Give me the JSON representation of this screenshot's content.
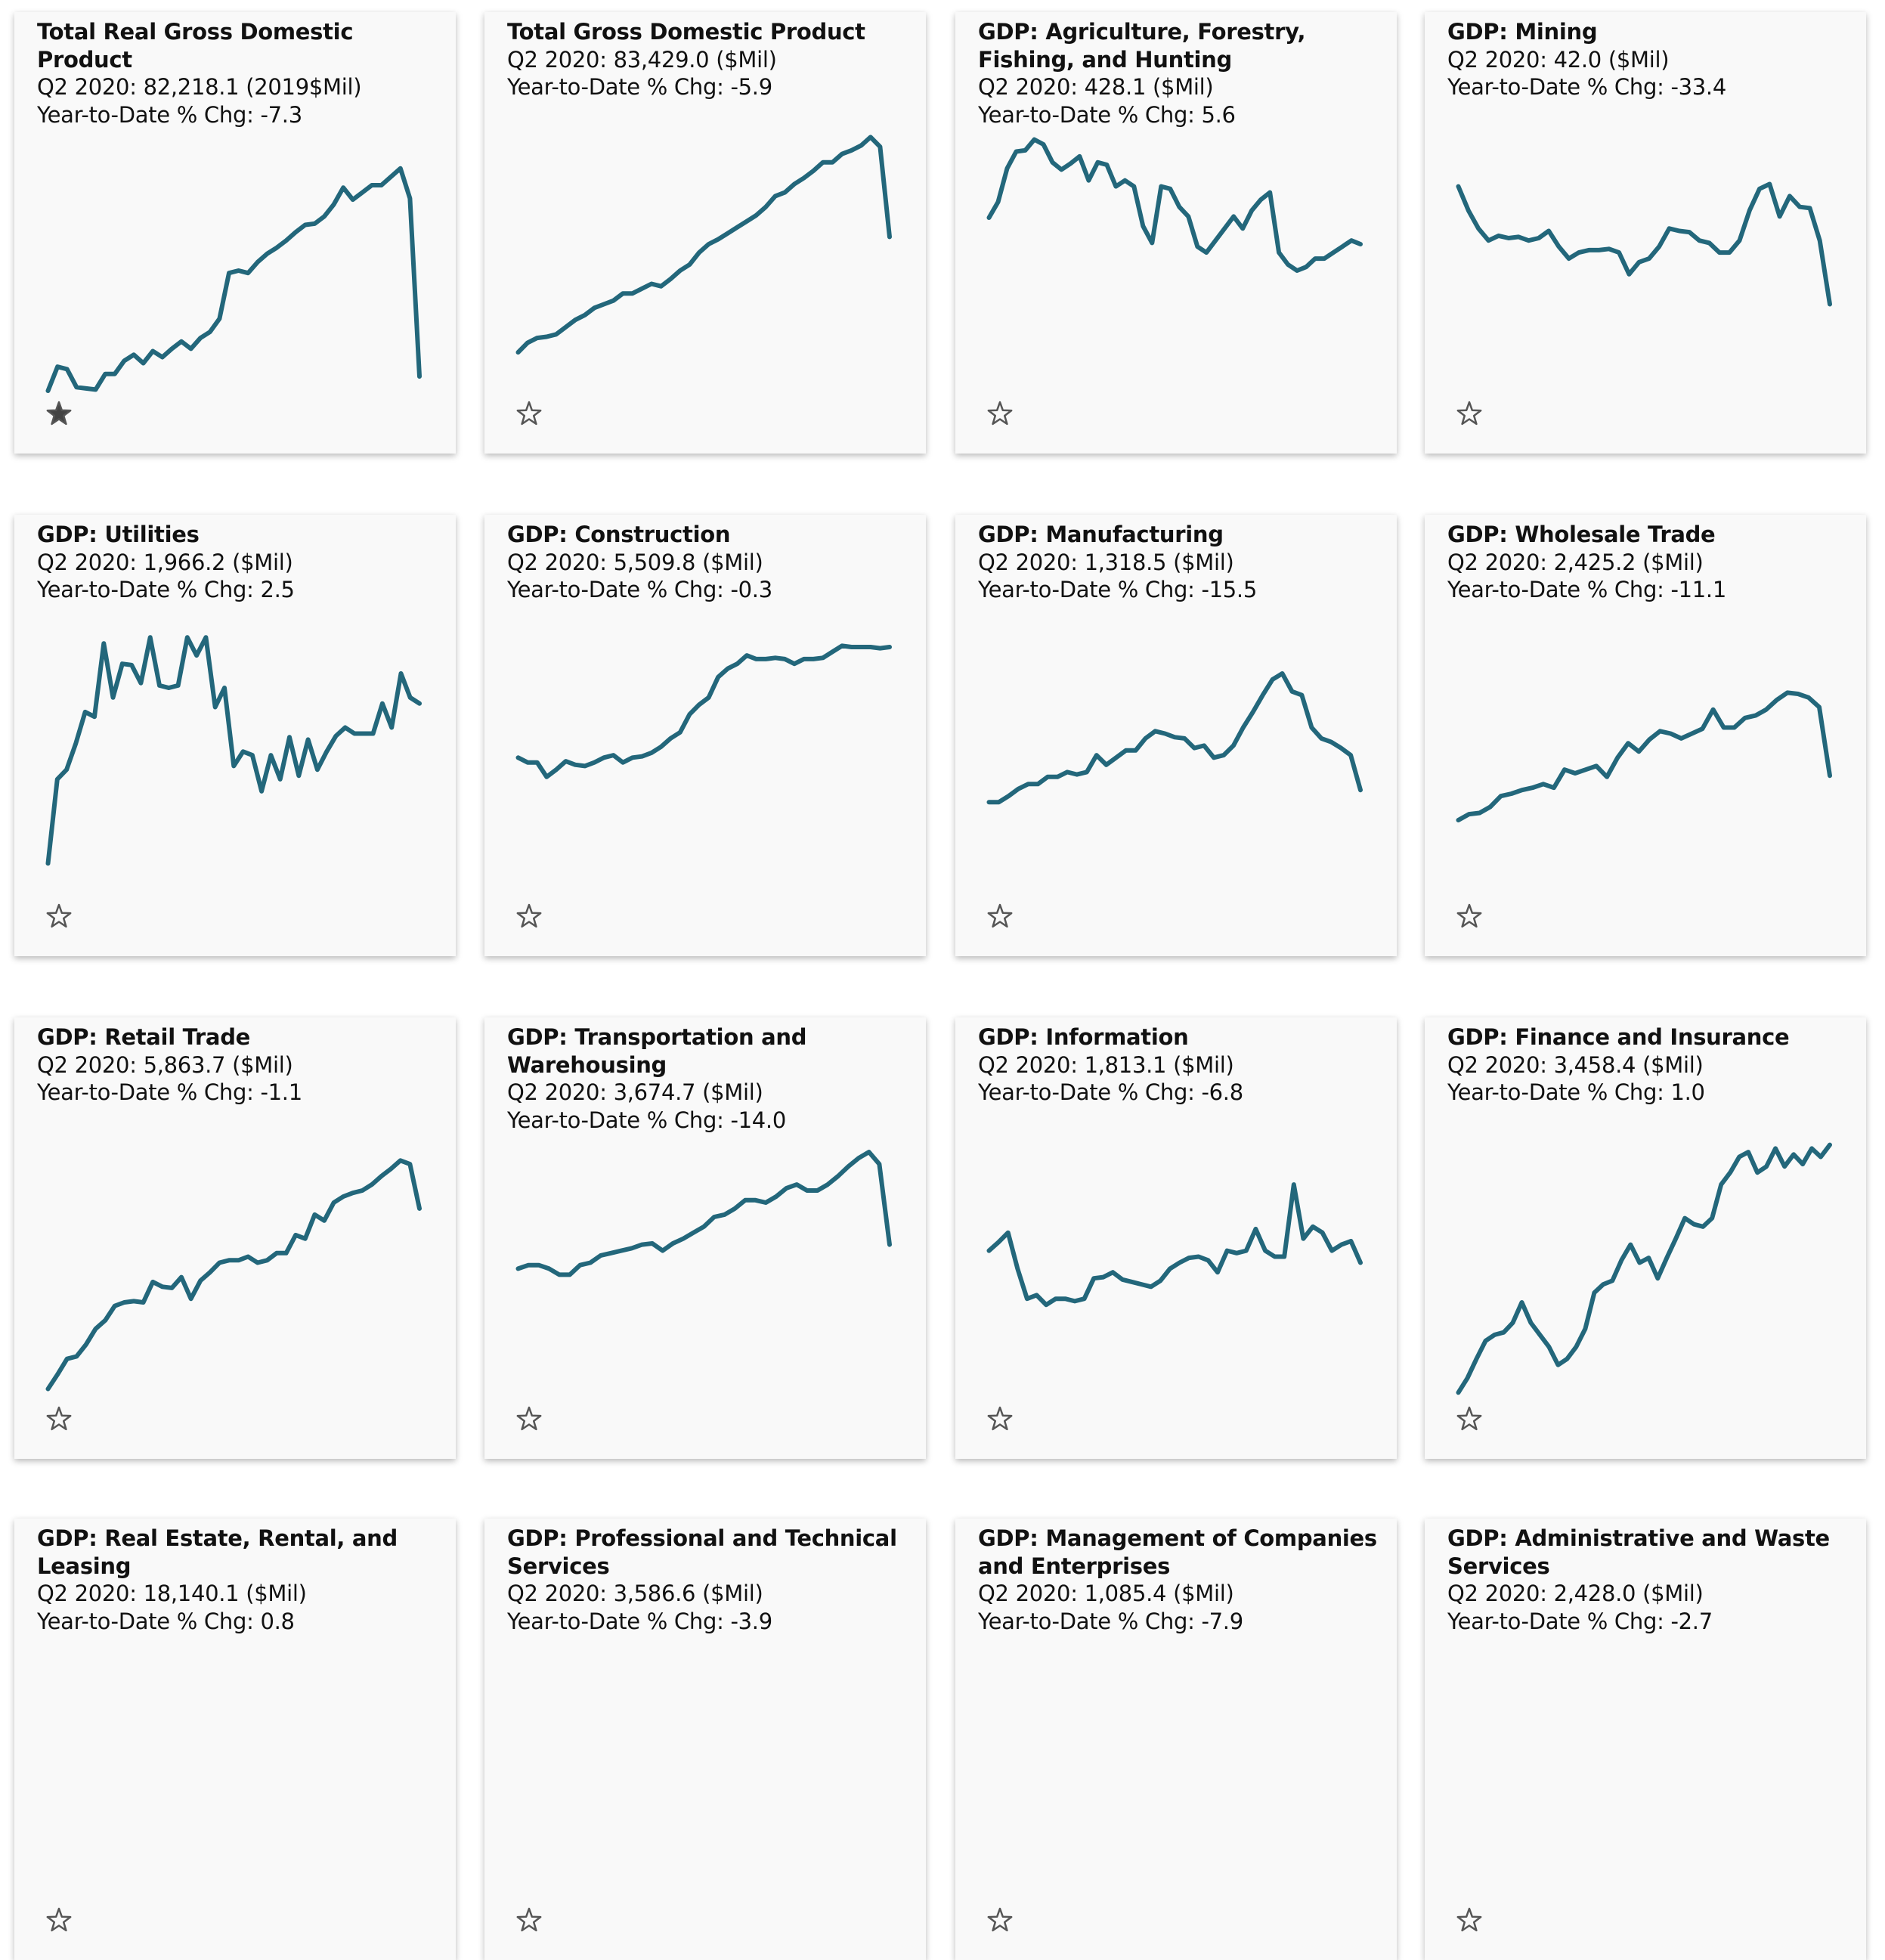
{
  "line_color": "#23677b",
  "cards": [
    {
      "title": "Total Real Gross Domestic Product",
      "value": "Q2 2020: 82,218.1 (2019$Mil)",
      "ytd": "Year-to-Date % Chg: -7.3",
      "starred": true,
      "values": [
        15,
        35,
        33,
        18,
        17,
        16,
        29,
        29,
        40,
        45,
        38,
        48,
        43,
        50,
        56,
        50,
        59,
        64,
        75,
        113,
        115,
        113,
        122,
        129,
        134,
        140,
        147,
        153,
        154,
        160,
        170,
        184,
        174,
        180,
        186,
        186,
        193,
        200,
        175,
        27
      ]
    },
    {
      "title": "Total Gross Domestic Product",
      "value": "Q2 2020: 83,429.0 ($Mil)",
      "ytd": "Year-to-Date % Chg: -5.9",
      "starred": false,
      "values": [
        47,
        55,
        59,
        60,
        62,
        68,
        74,
        78,
        84,
        87,
        90,
        96,
        96,
        100,
        104,
        102,
        108,
        115,
        120,
        130,
        137,
        141,
        146,
        151,
        156,
        161,
        168,
        177,
        180,
        187,
        192,
        198,
        205,
        205,
        212,
        215,
        219,
        226,
        218,
        143
      ]
    },
    {
      "title": "GDP: Agriculture, Forestry, Fishing, and Hunting",
      "value": "Q2 2020: 428.1 ($Mil)",
      "ytd": "Year-to-Date % Chg: 5.6",
      "starred": false,
      "values": [
        159,
        172,
        200,
        214,
        215,
        224,
        220,
        205,
        199,
        204,
        210,
        190,
        205,
        203,
        185,
        190,
        185,
        152,
        138,
        185,
        183,
        168,
        160,
        135,
        130,
        140,
        150,
        160,
        150,
        165,
        174,
        180,
        130,
        120,
        115,
        118,
        125,
        125,
        130,
        135,
        140,
        137
      ]
    },
    {
      "title": "GDP: Mining",
      "value": "Q2 2020: 42.0 ($Mil)",
      "ytd": "Year-to-Date % Chg: -33.4",
      "starred": false,
      "values": [
        185,
        165,
        150,
        140,
        144,
        142,
        143,
        140,
        142,
        148,
        135,
        125,
        130,
        132,
        132,
        133,
        130,
        112,
        122,
        125,
        135,
        150,
        148,
        147,
        140,
        138,
        130,
        130,
        140,
        165,
        183,
        187,
        160,
        177,
        168,
        167,
        140,
        87
      ]
    },
    {
      "title": "GDP: Utilities",
      "value": "Q2 2020: 1,966.2 ($Mil)",
      "ytd": "Year-to-Date % Chg: 2.5",
      "starred": false,
      "values": [
        40,
        110,
        118,
        140,
        166,
        162,
        223,
        178,
        206,
        205,
        190,
        228,
        188,
        186,
        188,
        228,
        213,
        228,
        170,
        186,
        121,
        133,
        130,
        100,
        130,
        110,
        145,
        113,
        143,
        118,
        133,
        146,
        153,
        148,
        148,
        148,
        173,
        153,
        198,
        178,
        173
      ]
    },
    {
      "title": "GDP: Construction",
      "value": "Q2 2020: 5,509.8 ($Mil)",
      "ytd": "Year-to-Date % Chg: -0.3",
      "starred": false,
      "values": [
        128,
        124,
        124,
        112,
        118,
        125,
        122,
        121,
        124,
        128,
        130,
        124,
        128,
        129,
        132,
        137,
        144,
        149,
        164,
        172,
        178,
        195,
        202,
        206,
        213,
        210,
        210,
        211,
        210,
        206,
        210,
        210,
        211,
        216,
        221,
        220,
        220,
        220,
        219,
        220
      ]
    },
    {
      "title": "GDP: Manufacturing",
      "value": "Q2 2020: 1,318.5 ($Mil)",
      "ytd": "Year-to-Date % Chg: -15.5",
      "starred": false,
      "values": [
        91,
        91,
        96,
        102,
        106,
        106,
        112,
        112,
        116,
        114,
        116,
        130,
        122,
        128,
        134,
        134,
        144,
        150,
        148,
        145,
        144,
        136,
        138,
        128,
        130,
        138,
        153,
        166,
        180,
        193,
        198,
        183,
        180,
        153,
        144,
        141,
        136,
        130,
        101
      ]
    },
    {
      "title": "GDP: Wholesale Trade",
      "value": "Q2 2020: 2,425.2 ($Mil)",
      "ytd": "Year-to-Date % Chg: -11.1",
      "starred": false,
      "values": [
        76,
        81,
        82,
        87,
        96,
        98,
        101,
        103,
        106,
        103,
        118,
        115,
        118,
        121,
        112,
        128,
        140,
        133,
        143,
        150,
        148,
        144,
        148,
        152,
        168,
        153,
        153,
        161,
        163,
        168,
        176,
        182,
        181,
        178,
        170,
        113
      ]
    },
    {
      "title": "GDP: Retail Trade",
      "value": "Q2 2020: 5,863.7 ($Mil)",
      "ytd": "Year-to-Date % Chg: -1.1",
      "starred": false,
      "values": [
        21,
        33,
        46,
        48,
        58,
        71,
        78,
        90,
        93,
        94,
        93,
        110,
        106,
        105,
        114,
        96,
        111,
        118,
        126,
        128,
        128,
        131,
        126,
        128,
        134,
        134,
        149,
        146,
        166,
        161,
        176,
        181,
        184,
        186,
        191,
        198,
        204,
        211,
        208,
        171
      ]
    },
    {
      "title": "GDP: Transportation and Warehousing",
      "value": "Q2 2020: 3,674.7 ($Mil)",
      "ytd": "Year-to-Date % Chg: -14.0",
      "starred": false,
      "values": [
        121,
        124,
        124,
        121,
        116,
        116,
        124,
        126,
        132,
        134,
        136,
        138,
        141,
        142,
        136,
        142,
        146,
        151,
        156,
        164,
        166,
        171,
        178,
        178,
        176,
        181,
        188,
        191,
        186,
        186,
        191,
        198,
        206,
        213,
        218,
        208,
        141
      ]
    },
    {
      "title": "GDP: Information",
      "value": "Q2 2020: 1,813.1 ($Mil)",
      "ytd": "Year-to-Date % Chg: -6.8",
      "starred": false,
      "values": [
        136,
        143,
        151,
        121,
        96,
        99,
        91,
        96,
        96,
        94,
        96,
        113,
        114,
        118,
        112,
        110,
        108,
        106,
        111,
        121,
        126,
        130,
        131,
        128,
        118,
        136,
        134,
        136,
        154,
        136,
        131,
        131,
        191,
        146,
        156,
        151,
        136,
        141,
        144,
        126
      ]
    },
    {
      "title": "GDP: Finance and Insurance",
      "value": "Q2 2020: 3,458.4 ($Mil)",
      "ytd": "Year-to-Date % Chg: 1.0",
      "starred": false,
      "values": [
        18,
        30,
        46,
        61,
        66,
        68,
        76,
        93,
        76,
        66,
        56,
        41,
        46,
        56,
        71,
        101,
        108,
        111,
        128,
        141,
        126,
        130,
        113,
        130,
        146,
        163,
        158,
        156,
        163,
        191,
        201,
        214,
        218,
        201,
        206,
        221,
        206,
        216,
        208,
        221,
        214,
        224
      ]
    },
    {
      "title": "GDP: Real Estate, Rental, and Leasing",
      "value": "Q2 2020: 18,140.1 ($Mil)",
      "ytd": "Year-to-Date % Chg: 0.8",
      "starred": false
    },
    {
      "title": "GDP: Professional and Technical Services",
      "value": "Q2 2020: 3,586.6 ($Mil)",
      "ytd": "Year-to-Date % Chg: -3.9",
      "starred": false
    },
    {
      "title": "GDP: Management of Companies and Enterprises",
      "value": "Q2 2020: 1,085.4 ($Mil)",
      "ytd": "Year-to-Date % Chg: -7.9",
      "starred": false
    },
    {
      "title": "GDP: Administrative and Waste Services",
      "value": "Q2 2020: 2,428.0 ($Mil)",
      "ytd": "Year-to-Date % Chg: -2.7",
      "starred": false
    }
  ]
}
